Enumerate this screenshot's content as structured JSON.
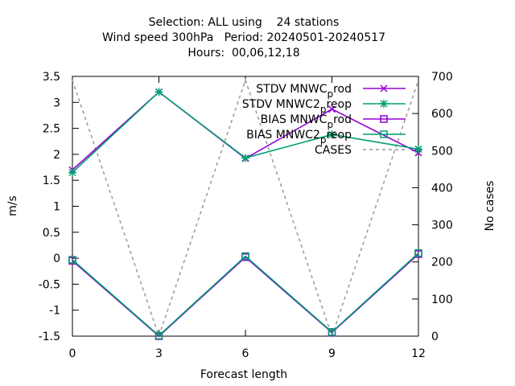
{
  "chart_data": {
    "type": "line",
    "title_lines": [
      "Selection: ALL using    24 stations",
      "Wind speed 300hPa   Period: 20240501-20240517",
      "Hours:  00,06,12,18"
    ],
    "xlabel": "Forecast length",
    "ylabel": "m/s",
    "y2label": "No cases",
    "x": [
      0,
      3,
      6,
      9,
      12
    ],
    "xlim": [
      0,
      12
    ],
    "ylim": [
      -1.5,
      3.5
    ],
    "y2lim": [
      0,
      700
    ],
    "xticks": [
      0,
      3,
      6,
      9,
      12
    ],
    "yticks": [
      -1.5,
      -1,
      -0.5,
      0,
      0.5,
      1,
      1.5,
      2,
      2.5,
      3,
      3.5
    ],
    "yticks_labels": [
      "-1.5",
      "-1",
      "-0.5",
      "0",
      "0.5",
      "1",
      "1.5",
      "2",
      "2.5",
      "3",
      "3.5"
    ],
    "y2ticks": [
      0,
      100,
      200,
      300,
      400,
      500,
      600,
      700
    ],
    "grid": false,
    "legend_position": "top-right",
    "series": [
      {
        "name": "STDV MNWC_prod",
        "label_main": "STDV MNWC",
        "label_sub": "p",
        "label_tail": "rod",
        "values": [
          1.7,
          3.2,
          1.92,
          2.87,
          2.03
        ],
        "color": "#9400d3",
        "marker": "x",
        "axis": "y1"
      },
      {
        "name": "STDV MNWC2_preop",
        "label_main": "STDV MNWC2",
        "label_sub": "p",
        "label_tail": "reop",
        "values": [
          1.65,
          3.2,
          1.93,
          2.38,
          2.1
        ],
        "color": "#009e73",
        "marker": "star",
        "axis": "y1"
      },
      {
        "name": "BIAS MNWC_prod",
        "label_main": "BIAS MNWC",
        "label_sub": "p",
        "label_tail": "rod",
        "values": [
          -0.05,
          -1.5,
          0.02,
          -1.43,
          0.08
        ],
        "color": "#9400d3",
        "marker": "square",
        "axis": "y1"
      },
      {
        "name": "BIAS MNWC2_preop",
        "label_main": "BIAS MNWC2",
        "label_sub": "p",
        "label_tail": "reop",
        "values": [
          -0.03,
          -1.49,
          0.04,
          -1.42,
          0.1
        ],
        "color": "#009e73",
        "marker": "square",
        "axis": "y1"
      },
      {
        "name": "CASES",
        "label_main": "CASES",
        "label_sub": "",
        "label_tail": "",
        "values": [
          690,
          0,
          690,
          0,
          690
        ],
        "color": "#999999",
        "marker": "none",
        "dashed": true,
        "axis": "y2"
      }
    ]
  }
}
